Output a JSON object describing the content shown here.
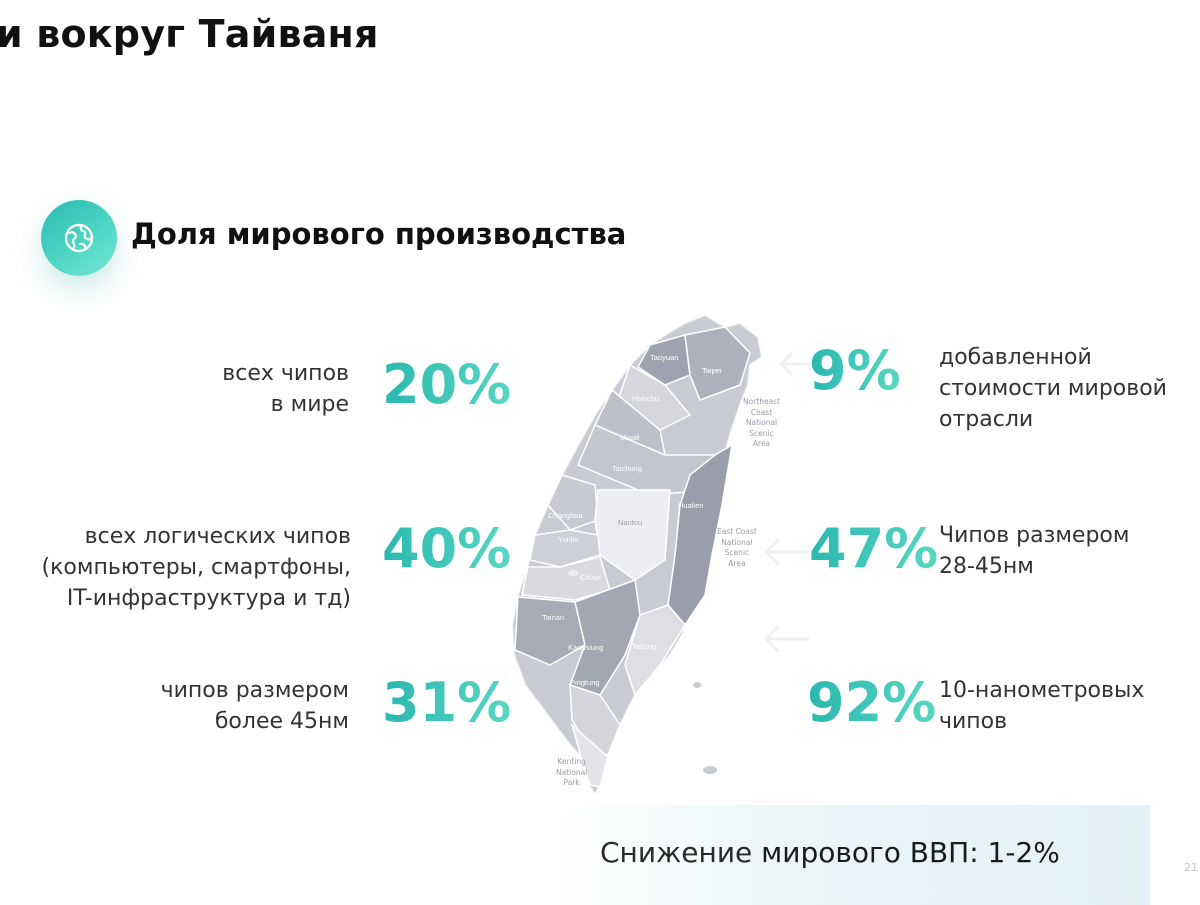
{
  "slide": {
    "title": "и вокруг Тайваня",
    "page_number": "21"
  },
  "section": {
    "title": "Доля мирового производства",
    "icon": "globe-icon",
    "accent_color": "#2bb8b0"
  },
  "stats_left": [
    {
      "label": "всех чипов\nв мире",
      "value": "20%"
    },
    {
      "label": "всех логических чипов\n(компьютеры, смартфоны,\nIT-инфраструктура и тд)",
      "value": "40%"
    },
    {
      "label": "чипов размером\nболее 45нм",
      "value": "31%"
    }
  ],
  "stats_right": [
    {
      "value": "9%",
      "label": "добавленной\nстоимости мировой\nотрасли"
    },
    {
      "value": "47%",
      "label": "Чипов размером\n28-45нм"
    },
    {
      "value": "92%",
      "label": "10-нанометровых\nчипов"
    }
  ],
  "map": {
    "regions": [
      "Taoyuan",
      "Taipei",
      "Hsinchu",
      "Miaoli",
      "Taichung",
      "Changhua",
      "Nantou",
      "Yunlin",
      "Chiayi",
      "Tainan",
      "Kaohsiung",
      "Pingtung",
      "Taitung",
      "Hualien"
    ],
    "parks": [
      {
        "name": "Northeast\nCoast\nNational\nScenic\nArea"
      },
      {
        "name": "East Coast\nNational\nScenic\nArea"
      },
      {
        "name": "Kenting\nNational\nPark"
      }
    ]
  },
  "gdp": {
    "prefix": "Снижение ",
    "highlight": "мирового ВВП: 1-2%"
  }
}
